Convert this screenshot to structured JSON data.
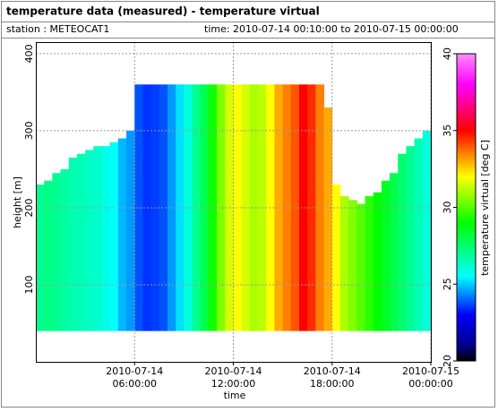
{
  "header": {
    "title": "temperature data (measured) - temperature virtual",
    "station": "station : METEOCAT1",
    "time": "time: 2010-07-14 00:10:00 to 2010-07-15 00:00:00"
  },
  "chart_data": {
    "type": "heatmap",
    "x_label": "time",
    "y_label": "height [m]",
    "colorbar_label": "temperature virtual [deg C]",
    "x": [
      0,
      0.5,
      1,
      1.5,
      2,
      2.5,
      3,
      3.5,
      4,
      4.5,
      5,
      5.5,
      6,
      6.5,
      7,
      7.5,
      8,
      8.5,
      9,
      9.5,
      10,
      10.5,
      11,
      11.5,
      12,
      12.5,
      13,
      13.5,
      14,
      14.5,
      15,
      15.5,
      16,
      16.5,
      17,
      17.5,
      18,
      18.5,
      19,
      19.5,
      20,
      20.5,
      21,
      21.5,
      22,
      22.5,
      23,
      23.5
    ],
    "values": [
      27,
      27.2,
      27,
      26.8,
      26.6,
      26.5,
      26.3,
      26.2,
      25.8,
      25.5,
      24.8,
      24.5,
      23.8,
      23.5,
      23.6,
      23.8,
      24.5,
      25.2,
      26,
      27,
      28,
      29.2,
      30.5,
      31.5,
      32,
      31.5,
      31,
      31.2,
      32,
      33,
      33.5,
      34,
      35,
      34.5,
      33.5,
      33,
      32,
      31,
      30.5,
      30,
      29.5,
      29,
      28.5,
      28,
      27.5,
      27,
      26.5,
      26
    ],
    "tops": [
      230,
      235,
      245,
      250,
      265,
      270,
      275,
      280,
      280,
      285,
      290,
      300,
      360,
      360,
      360,
      360,
      360,
      360,
      360,
      360,
      360,
      360,
      360,
      360,
      360,
      360,
      360,
      360,
      360,
      360,
      360,
      360,
      360,
      360,
      360,
      330,
      230,
      215,
      210,
      205,
      215,
      220,
      235,
      245,
      270,
      280,
      290,
      300
    ],
    "ybase": 40,
    "xlim": [
      0,
      24
    ],
    "xticks": [
      {
        "value": 6,
        "label": "2010-07-14\n06:00:00"
      },
      {
        "value": 12,
        "label": "2010-07-14\n12:00:00"
      },
      {
        "value": 18,
        "label": "2010-07-14\n18:00:00"
      },
      {
        "value": 24,
        "label": "2010-07-15\n00:00:00"
      }
    ],
    "ylim": [
      0,
      415
    ],
    "yticks": [
      100,
      200,
      300,
      400
    ],
    "clim": [
      20,
      40
    ],
    "cticks": [
      20,
      25,
      30,
      35,
      40
    ],
    "colormap": [
      [
        20,
        "#000000"
      ],
      [
        21,
        "#00008b"
      ],
      [
        23,
        "#0000ff"
      ],
      [
        25.5,
        "#00ffff"
      ],
      [
        29,
        "#00ff00"
      ],
      [
        32,
        "#ffff00"
      ],
      [
        35,
        "#ff0000"
      ],
      [
        38,
        "#ff00ff"
      ],
      [
        40,
        "#ff8cff"
      ]
    ],
    "grid": true
  }
}
